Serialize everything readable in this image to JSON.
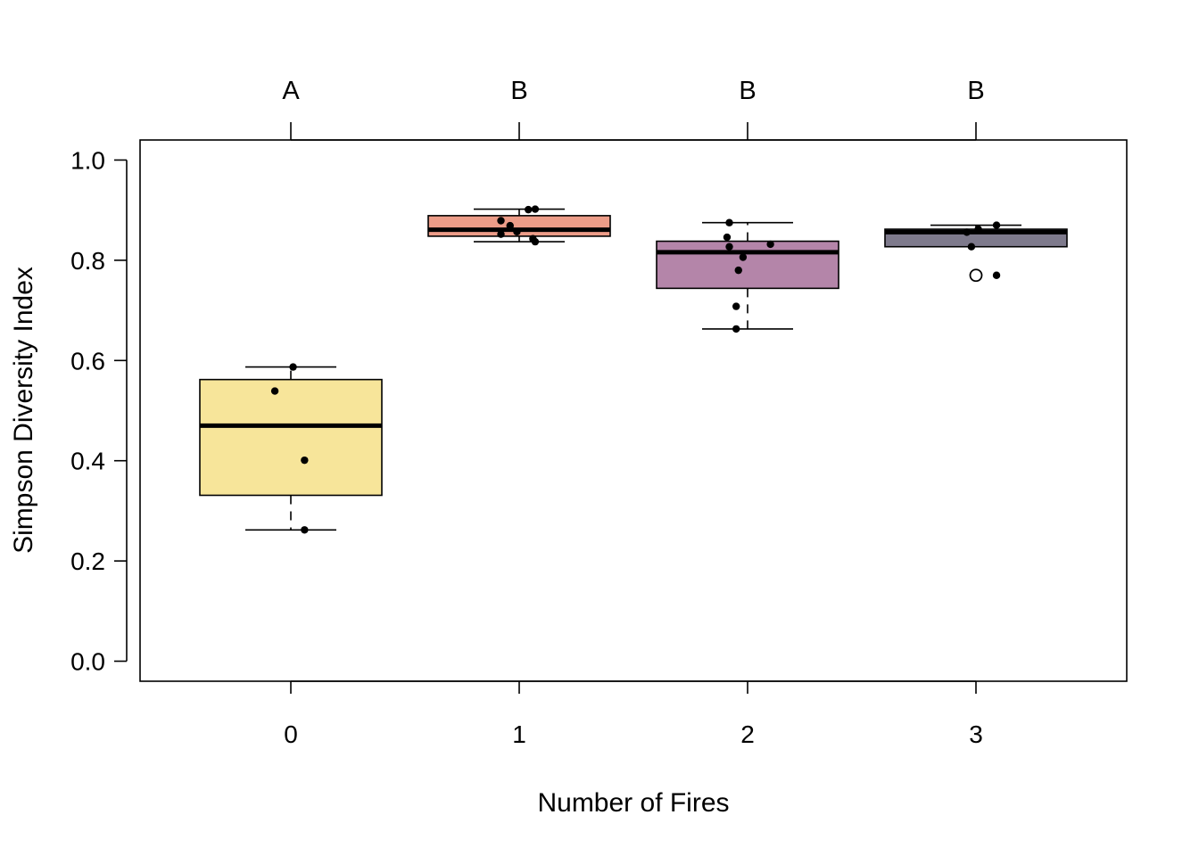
{
  "chart_data": {
    "type": "box",
    "xlabel": "Number of Fires",
    "ylabel": "Simpson Diversity Index",
    "ylim": [
      -0.04,
      1.04
    ],
    "yticks": [
      0.0,
      0.2,
      0.4,
      0.6,
      0.8,
      1.0
    ],
    "ytick_labels": [
      "0.0",
      "0.2",
      "0.4",
      "0.6",
      "0.8",
      "1.0"
    ],
    "grid": false,
    "legend": "none",
    "categories": [
      "0",
      "1",
      "2",
      "3"
    ],
    "group_letters": [
      "A",
      "B",
      "B",
      "B"
    ],
    "boxes": [
      {
        "category": "0",
        "color": "#F7E59A",
        "whisker_low": 0.262,
        "q1": 0.331,
        "median": 0.47,
        "q3": 0.562,
        "whisker_high": 0.587,
        "outliers": [],
        "points": [
          {
            "x": 0.06,
            "y": 0.262
          },
          {
            "x": 0.06,
            "y": 0.401
          },
          {
            "x": -0.07,
            "y": 0.539
          },
          {
            "x": 0.01,
            "y": 0.587
          }
        ]
      },
      {
        "category": "1",
        "color": "#EC9C88",
        "whisker_low": 0.837,
        "q1": 0.848,
        "median": 0.861,
        "q3": 0.889,
        "whisker_high": 0.902,
        "outliers": [],
        "points": [
          {
            "x": -0.08,
            "y": 0.879
          },
          {
            "x": -0.04,
            "y": 0.869
          },
          {
            "x": -0.01,
            "y": 0.857
          },
          {
            "x": -0.08,
            "y": 0.852
          },
          {
            "x": 0.04,
            "y": 0.901
          },
          {
            "x": 0.07,
            "y": 0.902
          },
          {
            "x": 0.06,
            "y": 0.843
          },
          {
            "x": 0.07,
            "y": 0.837
          }
        ]
      },
      {
        "category": "2",
        "color": "#B485A9",
        "whisker_low": 0.663,
        "q1": 0.744,
        "median": 0.816,
        "q3": 0.838,
        "whisker_high": 0.875,
        "outliers": [],
        "points": [
          {
            "x": -0.08,
            "y": 0.875
          },
          {
            "x": -0.09,
            "y": 0.846
          },
          {
            "x": 0.1,
            "y": 0.832
          },
          {
            "x": -0.08,
            "y": 0.827
          },
          {
            "x": -0.02,
            "y": 0.806
          },
          {
            "x": -0.04,
            "y": 0.78
          },
          {
            "x": -0.05,
            "y": 0.708
          },
          {
            "x": -0.05,
            "y": 0.663
          }
        ]
      },
      {
        "category": "3",
        "color": "#7E7A8C",
        "whisker_low": 0.827,
        "q1": 0.827,
        "median": 0.856,
        "q3": 0.862,
        "whisker_high": 0.87,
        "outliers": [
          0.77
        ],
        "points": [
          {
            "x": 0.09,
            "y": 0.87
          },
          {
            "x": 0.01,
            "y": 0.862
          },
          {
            "x": -0.04,
            "y": 0.856
          },
          {
            "x": -0.02,
            "y": 0.827
          },
          {
            "x": 0.09,
            "y": 0.77
          }
        ]
      }
    ]
  }
}
